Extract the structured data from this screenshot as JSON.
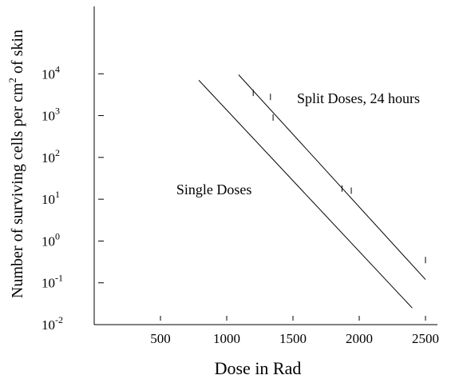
{
  "chart_data": {
    "type": "line",
    "title": "",
    "xlabel": "Dose in Rad",
    "ylabel_main": "Number of surviving cells per cm",
    "ylabel_sup": "2",
    "ylabel_tail": " of skin",
    "y_scale": "log",
    "xlim": [
      0,
      2500
    ],
    "ylim": [
      0.01,
      100000
    ],
    "x_ticks": [
      {
        "value": 500,
        "label": "500"
      },
      {
        "value": 1000,
        "label": "1000"
      },
      {
        "value": 1500,
        "label": "1500"
      },
      {
        "value": 2000,
        "label": "2000"
      },
      {
        "value": 2500,
        "label": "2500"
      }
    ],
    "y_ticks": [
      {
        "value": 0.01,
        "base": "10",
        "exp": "-2"
      },
      {
        "value": 0.1,
        "base": "10",
        "exp": "-1"
      },
      {
        "value": 1,
        "base": "10",
        "exp": "0"
      },
      {
        "value": 10,
        "base": "10",
        "exp": "1"
      },
      {
        "value": 100,
        "base": "10",
        "exp": "2"
      },
      {
        "value": 1000,
        "base": "10",
        "exp": "3"
      },
      {
        "value": 10000,
        "base": "10",
        "exp": "4"
      }
    ],
    "series": [
      {
        "name": "Single Doses",
        "x": [
          790,
          2400
        ],
        "y": [
          7000,
          0.025
        ]
      },
      {
        "name": "Split Doses, 24 hours",
        "x": [
          1090,
          2500
        ],
        "y": [
          9500,
          0.12
        ]
      }
    ],
    "annotations": [
      {
        "text": "Split Doses, 24 hours",
        "x": 1530,
        "y": 2000
      },
      {
        "text": "Single Doses",
        "x": 620,
        "y": 13
      }
    ],
    "point_marks": [
      {
        "x": 1200,
        "y": 3500
      },
      {
        "x": 1330,
        "y": 2800
      },
      {
        "x": 1350,
        "y": 900
      },
      {
        "x": 1870,
        "y": 18
      },
      {
        "x": 1940,
        "y": 16
      },
      {
        "x": 2500,
        "y": 0.35
      }
    ],
    "grid": false,
    "legend": "none"
  }
}
